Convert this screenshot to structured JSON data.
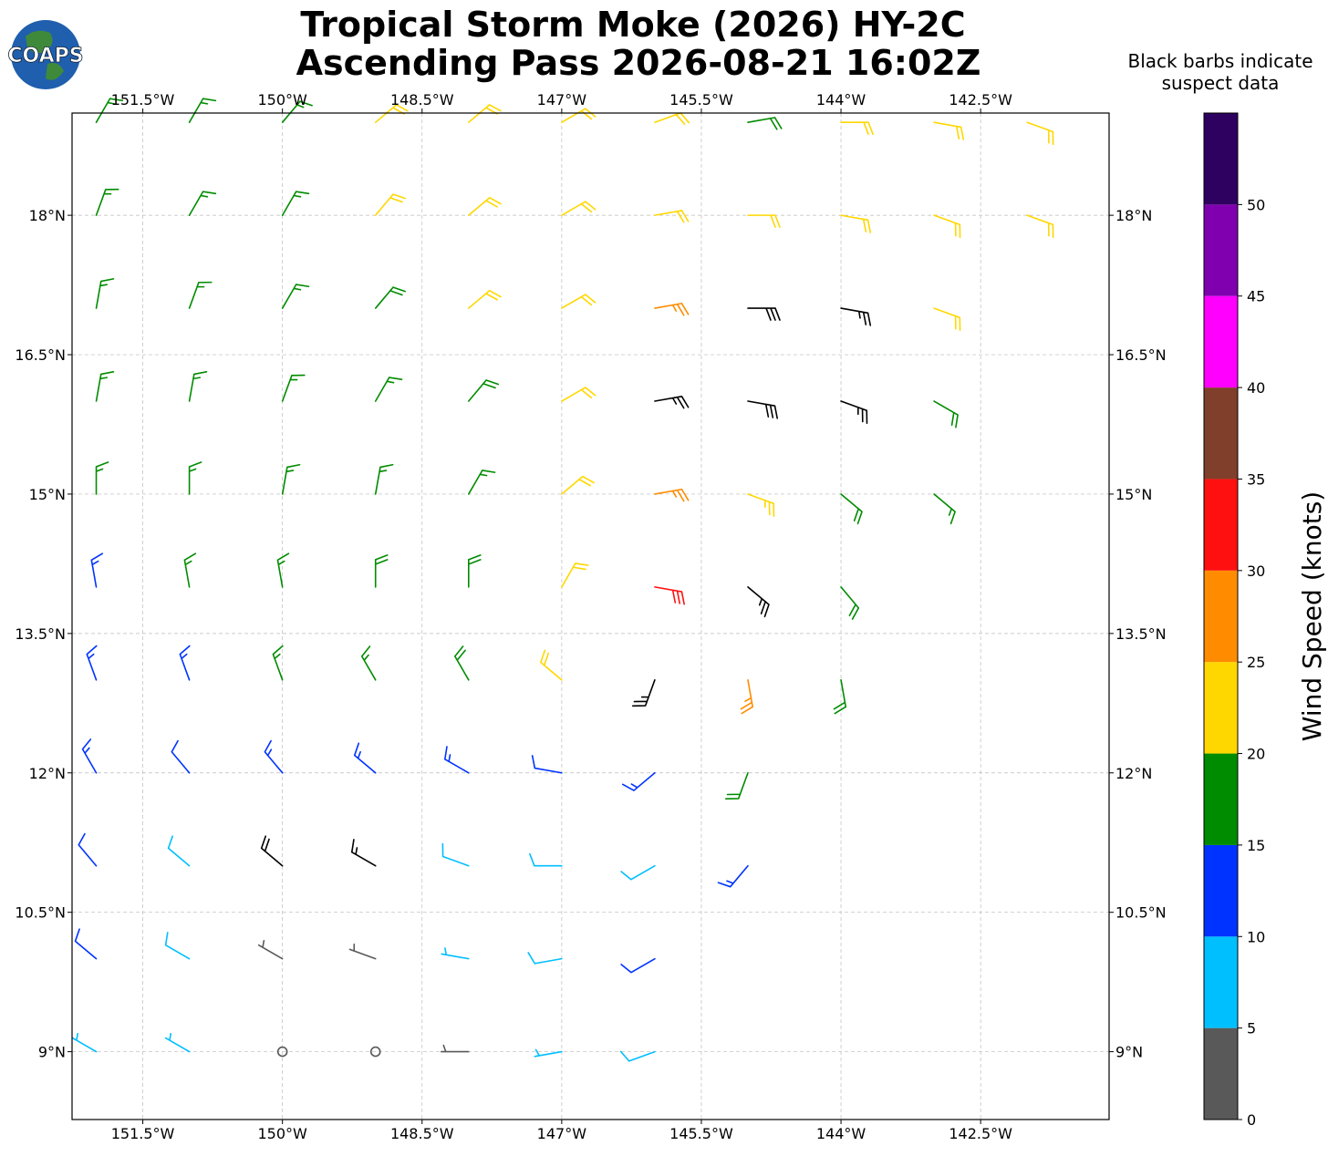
{
  "map": {
    "title": "Tropical Storm Moke (2026) HY-2C",
    "subtitle": "Ascending Pass 2026-08-21 16:02Z",
    "logo": "COAPS",
    "note": [
      "Black barbs indicate",
      "suspect data"
    ],
    "lonlim": [
      -152.26,
      -141.12
    ],
    "latlim": [
      8.27,
      19.1
    ],
    "lonticks": [
      {
        "value": -151.5,
        "label": "151.5°W"
      },
      {
        "value": -150,
        "label": "150°W"
      },
      {
        "value": -148.5,
        "label": "148.5°W"
      },
      {
        "value": -147,
        "label": "147°W"
      },
      {
        "value": -145.5,
        "label": "145.5°W"
      },
      {
        "value": -144,
        "label": "144°W"
      },
      {
        "value": -142.5,
        "label": "142.5°W"
      }
    ],
    "latticks": [
      {
        "value": 9,
        "label": "9°N"
      },
      {
        "value": 10.5,
        "label": "10.5°N"
      },
      {
        "value": 12,
        "label": "12°N"
      },
      {
        "value": 13.5,
        "label": "13.5°N"
      },
      {
        "value": 15,
        "label": "15°N"
      },
      {
        "value": 16.5,
        "label": "16.5°N"
      },
      {
        "value": 18,
        "label": "18°N"
      }
    ],
    "grid": true,
    "suspect_color": "#000000",
    "colorbar": {
      "label": "Wind Speed (knots)",
      "bounds": [
        0,
        5,
        10,
        15,
        20,
        25,
        30,
        35,
        40,
        45,
        50,
        55
      ],
      "colors": [
        "#595959",
        "#00bfff",
        "#0033ff",
        "#008c00",
        "#ffd700",
        "#ff8c00",
        "#ff1010",
        "#7f3f2a",
        "#ff00ff",
        "#8000b0",
        "#2e0060"
      ],
      "ticks": [
        0,
        5,
        10,
        15,
        20,
        25,
        30,
        35,
        40,
        45,
        50
      ]
    },
    "barbs": [
      {
        "lon": -152,
        "lat": 19,
        "speed": 17,
        "direction": 30
      },
      {
        "lon": -151,
        "lat": 19,
        "speed": 17,
        "direction": 30
      },
      {
        "lon": -150,
        "lat": 19,
        "speed": 17,
        "direction": 40
      },
      {
        "lon": -149,
        "lat": 19,
        "speed": 22,
        "direction": 50
      },
      {
        "lon": -148,
        "lat": 19,
        "speed": 22,
        "direction": 50
      },
      {
        "lon": -147,
        "lat": 19,
        "speed": 22,
        "direction": 60
      },
      {
        "lon": -146,
        "lat": 19,
        "speed": 22,
        "direction": 70
      },
      {
        "lon": -145,
        "lat": 19,
        "speed": 19,
        "direction": 80
      },
      {
        "lon": -144,
        "lat": 19,
        "speed": 20,
        "direction": 90
      },
      {
        "lon": -143,
        "lat": 19,
        "speed": 20,
        "direction": 100
      },
      {
        "lon": -142,
        "lat": 19,
        "speed": 21,
        "direction": 110
      },
      {
        "lon": -152,
        "lat": 18,
        "speed": 17,
        "direction": 20
      },
      {
        "lon": -151,
        "lat": 18,
        "speed": 17,
        "direction": 30
      },
      {
        "lon": -150,
        "lat": 18,
        "speed": 17,
        "direction": 30
      },
      {
        "lon": -149,
        "lat": 18,
        "speed": 22,
        "direction": 40
      },
      {
        "lon": -148,
        "lat": 18,
        "speed": 22,
        "direction": 50
      },
      {
        "lon": -147,
        "lat": 18,
        "speed": 22,
        "direction": 60
      },
      {
        "lon": -146,
        "lat": 18,
        "speed": 22,
        "direction": 80
      },
      {
        "lon": -145,
        "lat": 18,
        "speed": 21,
        "direction": 90
      },
      {
        "lon": -144,
        "lat": 18,
        "speed": 21,
        "direction": 100
      },
      {
        "lon": -143,
        "lat": 18,
        "speed": 21,
        "direction": 110
      },
      {
        "lon": -142,
        "lat": 18,
        "speed": 21,
        "direction": 110
      },
      {
        "lon": -152,
        "lat": 17,
        "speed": 16,
        "direction": 10
      },
      {
        "lon": -151,
        "lat": 17,
        "speed": 16,
        "direction": 20
      },
      {
        "lon": -150,
        "lat": 17,
        "speed": 16,
        "direction": 30
      },
      {
        "lon": -149,
        "lat": 17,
        "speed": 18,
        "direction": 40
      },
      {
        "lon": -148,
        "lat": 17,
        "speed": 21,
        "direction": 50
      },
      {
        "lon": -147,
        "lat": 17,
        "speed": 22,
        "direction": 60
      },
      {
        "lon": -146,
        "lat": 17,
        "speed": 26,
        "direction": 80
      },
      {
        "lon": -145,
        "lat": 17,
        "speed": 28,
        "direction": 90,
        "suspect": true
      },
      {
        "lon": -144,
        "lat": 17,
        "speed": 27,
        "direction": 100,
        "suspect": true
      },
      {
        "lon": -143,
        "lat": 17,
        "speed": 22,
        "direction": 110
      },
      {
        "lon": -152,
        "lat": 16,
        "speed": 16,
        "direction": 10
      },
      {
        "lon": -151,
        "lat": 16,
        "speed": 16,
        "direction": 10
      },
      {
        "lon": -150,
        "lat": 16,
        "speed": 16,
        "direction": 20
      },
      {
        "lon": -149,
        "lat": 16,
        "speed": 16,
        "direction": 30
      },
      {
        "lon": -148,
        "lat": 16,
        "speed": 18,
        "direction": 40
      },
      {
        "lon": -147,
        "lat": 16,
        "speed": 21,
        "direction": 60
      },
      {
        "lon": -146,
        "lat": 16,
        "speed": 27,
        "direction": 80,
        "suspect": true
      },
      {
        "lon": -145,
        "lat": 16,
        "speed": 28,
        "direction": 100,
        "suspect": true
      },
      {
        "lon": -144,
        "lat": 16,
        "speed": 26,
        "direction": 110,
        "suspect": true
      },
      {
        "lon": -143,
        "lat": 16,
        "speed": 19,
        "direction": 120
      },
      {
        "lon": -152,
        "lat": 15,
        "speed": 15,
        "direction": 360
      },
      {
        "lon": -151,
        "lat": 15,
        "speed": 17,
        "direction": 360
      },
      {
        "lon": -150,
        "lat": 15,
        "speed": 17,
        "direction": 10
      },
      {
        "lon": -149,
        "lat": 15,
        "speed": 17,
        "direction": 10
      },
      {
        "lon": -148,
        "lat": 15,
        "speed": 17,
        "direction": 30
      },
      {
        "lon": -147,
        "lat": 15,
        "speed": 21,
        "direction": 50
      },
      {
        "lon": -146,
        "lat": 15,
        "speed": 26,
        "direction": 80
      },
      {
        "lon": -145,
        "lat": 15,
        "speed": 24,
        "direction": 110
      },
      {
        "lon": -144,
        "lat": 15,
        "speed": 19,
        "direction": 130
      },
      {
        "lon": -143,
        "lat": 15,
        "speed": 17,
        "direction": 130
      },
      {
        "lon": -152,
        "lat": 14,
        "speed": 14,
        "direction": 350
      },
      {
        "lon": -151,
        "lat": 14,
        "speed": 16,
        "direction": 350
      },
      {
        "lon": -150,
        "lat": 14,
        "speed": 17,
        "direction": 350
      },
      {
        "lon": -149,
        "lat": 14,
        "speed": 18,
        "direction": 360
      },
      {
        "lon": -148,
        "lat": 14,
        "speed": 19,
        "direction": 360
      },
      {
        "lon": -147,
        "lat": 14,
        "speed": 22,
        "direction": 30
      },
      {
        "lon": -146,
        "lat": 14,
        "speed": 31,
        "direction": 100
      },
      {
        "lon": -145,
        "lat": 14,
        "speed": 27,
        "direction": 130,
        "suspect": true
      },
      {
        "lon": -144,
        "lat": 14,
        "speed": 18,
        "direction": 140
      },
      {
        "lon": -152,
        "lat": 13,
        "speed": 13,
        "direction": 340
      },
      {
        "lon": -151,
        "lat": 13,
        "speed": 14,
        "direction": 340
      },
      {
        "lon": -150,
        "lat": 13,
        "speed": 16,
        "direction": 340
      },
      {
        "lon": -149,
        "lat": 13,
        "speed": 17,
        "direction": 330
      },
      {
        "lon": -148,
        "lat": 13,
        "speed": 18,
        "direction": 330
      },
      {
        "lon": -147,
        "lat": 13,
        "speed": 21,
        "direction": 310
      },
      {
        "lon": -146,
        "lat": 13,
        "speed": 24,
        "direction": 200,
        "suspect": true
      },
      {
        "lon": -145,
        "lat": 13,
        "speed": 26,
        "direction": 170
      },
      {
        "lon": -144,
        "lat": 13,
        "speed": 18,
        "direction": 170
      },
      {
        "lon": -152,
        "lat": 12,
        "speed": 13,
        "direction": 330
      },
      {
        "lon": -151,
        "lat": 12,
        "speed": 12,
        "direction": 320
      },
      {
        "lon": -150,
        "lat": 12,
        "speed": 13,
        "direction": 320
      },
      {
        "lon": -149,
        "lat": 12,
        "speed": 14,
        "direction": 310
      },
      {
        "lon": -148,
        "lat": 12,
        "speed": 13,
        "direction": 300
      },
      {
        "lon": -147,
        "lat": 12,
        "speed": 12,
        "direction": 280
      },
      {
        "lon": -146,
        "lat": 12,
        "speed": 14,
        "direction": 230
      },
      {
        "lon": -145,
        "lat": 12,
        "speed": 18,
        "direction": 200
      },
      {
        "lon": -152,
        "lat": 11,
        "speed": 12,
        "direction": 320
      },
      {
        "lon": -151,
        "lat": 11,
        "speed": 9,
        "direction": 310
      },
      {
        "lon": -150,
        "lat": 11,
        "speed": 18,
        "direction": 310,
        "suspect": true
      },
      {
        "lon": -149,
        "lat": 11,
        "speed": 17,
        "direction": 300,
        "suspect": true
      },
      {
        "lon": -148,
        "lat": 11,
        "speed": 8,
        "direction": 290
      },
      {
        "lon": -147,
        "lat": 11,
        "speed": 8,
        "direction": 270
      },
      {
        "lon": -146,
        "lat": 11,
        "speed": 9,
        "direction": 240
      },
      {
        "lon": -145,
        "lat": 11,
        "speed": 13,
        "direction": 220
      },
      {
        "lon": -152,
        "lat": 10,
        "speed": 12,
        "direction": 310
      },
      {
        "lon": -151,
        "lat": 10,
        "speed": 8,
        "direction": 300
      },
      {
        "lon": -150,
        "lat": 10,
        "speed": 3,
        "direction": 300
      },
      {
        "lon": -149,
        "lat": 10,
        "speed": 3,
        "direction": 290
      },
      {
        "lon": -148,
        "lat": 10,
        "speed": 7,
        "direction": 280
      },
      {
        "lon": -147,
        "lat": 10,
        "speed": 9,
        "direction": 260
      },
      {
        "lon": -146,
        "lat": 10,
        "speed": 11,
        "direction": 240
      },
      {
        "lon": -152,
        "lat": 9,
        "speed": 7,
        "direction": 300
      },
      {
        "lon": -151,
        "lat": 9,
        "speed": 6,
        "direction": 300
      },
      {
        "lon": -150,
        "lat": 9,
        "speed": 2,
        "direction": 290
      },
      {
        "lon": -149,
        "lat": 9,
        "speed": 1,
        "direction": 280
      },
      {
        "lon": -148,
        "lat": 9,
        "speed": 3,
        "direction": 270
      },
      {
        "lon": -147,
        "lat": 9,
        "speed": 6,
        "direction": 260
      },
      {
        "lon": -146,
        "lat": 9,
        "speed": 8,
        "direction": 250
      }
    ]
  }
}
